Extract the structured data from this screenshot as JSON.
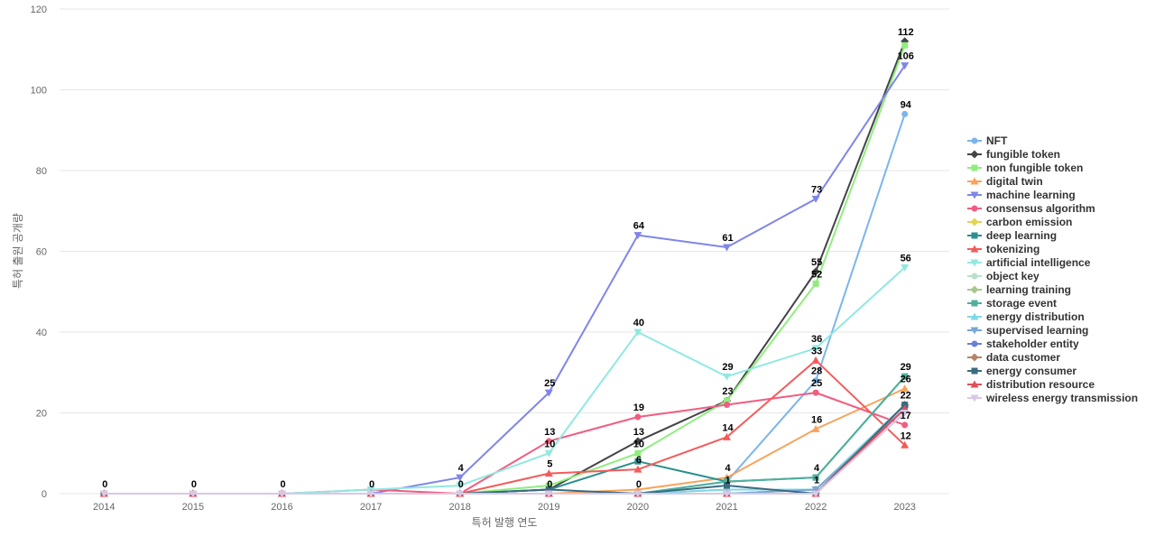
{
  "chart_data": {
    "type": "line",
    "title": "",
    "xlabel": "특허 발행 연도",
    "ylabel": "특허 출원 공개량",
    "categories": [
      "2014",
      "2015",
      "2016",
      "2017",
      "2018",
      "2019",
      "2020",
      "2021",
      "2022",
      "2023"
    ],
    "ylim": [
      0,
      120
    ],
    "yticks": [
      0,
      20,
      40,
      60,
      80,
      100,
      120
    ],
    "grid": true,
    "legend_position": "right",
    "series": [
      {
        "name": "NFT",
        "color": "#7cb5ec",
        "marker": "circle",
        "values": [
          0,
          0,
          0,
          0,
          0,
          0,
          0,
          3,
          28,
          94
        ]
      },
      {
        "name": "fungible token",
        "color": "#434348",
        "marker": "diamond",
        "values": [
          0,
          0,
          0,
          0,
          0,
          1,
          13,
          23,
          55,
          112
        ]
      },
      {
        "name": "non fungible token",
        "color": "#90ed7d",
        "marker": "square",
        "values": [
          0,
          0,
          0,
          0,
          0,
          2,
          10,
          23,
          52,
          111
        ]
      },
      {
        "name": "digital twin",
        "color": "#f7a35c",
        "marker": "triangle",
        "values": [
          0,
          0,
          0,
          0,
          0,
          0,
          1,
          4,
          16,
          26
        ]
      },
      {
        "name": "machine learning",
        "color": "#8085e9",
        "marker": "triangle-down",
        "values": [
          0,
          0,
          0,
          0,
          4,
          25,
          64,
          61,
          73,
          106
        ]
      },
      {
        "name": "consensus algorithm",
        "color": "#f15c80",
        "marker": "circle",
        "values": [
          0,
          0,
          0,
          1,
          0,
          13,
          19,
          22,
          25,
          17
        ]
      },
      {
        "name": "carbon emission",
        "color": "#e4d354",
        "marker": "diamond",
        "values": [
          0,
          0,
          0,
          0,
          0,
          0,
          0,
          0,
          1,
          22
        ]
      },
      {
        "name": "deep learning",
        "color": "#2b908f",
        "marker": "square",
        "values": [
          0,
          0,
          0,
          0,
          0,
          1,
          8,
          3,
          4,
          29
        ]
      },
      {
        "name": "tokenizing",
        "color": "#f45b5b",
        "marker": "triangle",
        "values": [
          0,
          0,
          0,
          0,
          0,
          5,
          6,
          14,
          33,
          12
        ]
      },
      {
        "name": "artificial intelligence",
        "color": "#91e8e1",
        "marker": "triangle-down",
        "values": [
          0,
          0,
          0,
          1,
          2,
          10,
          40,
          29,
          36,
          56
        ]
      },
      {
        "name": "object key",
        "color": "#b9e0c9",
        "marker": "circle",
        "values": [
          0,
          0,
          0,
          0,
          0,
          0,
          0,
          0,
          1,
          22
        ]
      },
      {
        "name": "learning training",
        "color": "#a8c68f",
        "marker": "diamond",
        "values": [
          0,
          0,
          0,
          0,
          0,
          0,
          0,
          1,
          1,
          22
        ]
      },
      {
        "name": "storage event",
        "color": "#4fb09c",
        "marker": "square",
        "values": [
          0,
          0,
          0,
          0,
          0,
          0,
          0,
          3,
          4,
          29
        ]
      },
      {
        "name": "energy distribution",
        "color": "#7fd8e8",
        "marker": "triangle",
        "values": [
          0,
          0,
          0,
          0,
          0,
          0,
          0,
          1,
          1,
          22
        ]
      },
      {
        "name": "supervised learning",
        "color": "#7aa6d6",
        "marker": "triangle-down",
        "values": [
          0,
          0,
          0,
          0,
          0,
          0,
          0,
          0,
          1,
          21
        ]
      },
      {
        "name": "stakeholder entity",
        "color": "#6b7fd7",
        "marker": "circle",
        "values": [
          0,
          0,
          0,
          0,
          0,
          0,
          0,
          0,
          0,
          21
        ]
      },
      {
        "name": "data customer",
        "color": "#b5836a",
        "marker": "diamond",
        "values": [
          0,
          0,
          0,
          0,
          0,
          0,
          0,
          0,
          0,
          22
        ]
      },
      {
        "name": "energy consumer",
        "color": "#3b6b82",
        "marker": "square",
        "values": [
          0,
          0,
          0,
          0,
          0,
          1,
          0,
          2,
          0,
          22
        ]
      },
      {
        "name": "distribution resource",
        "color": "#e0505a",
        "marker": "triangle",
        "values": [
          0,
          0,
          0,
          0,
          0,
          0,
          0,
          0,
          0,
          21
        ]
      },
      {
        "name": "wireless energy transmission",
        "color": "#d8c8e8",
        "marker": "triangle-down",
        "values": [
          0,
          0,
          0,
          0,
          0,
          0,
          0,
          0,
          0,
          20
        ]
      }
    ],
    "data_labels": [
      {
        "category": "2014",
        "text": "0",
        "value": 0
      },
      {
        "category": "2015",
        "text": "0",
        "value": 0
      },
      {
        "category": "2016",
        "text": "0",
        "value": 0
      },
      {
        "category": "2017",
        "text": "0",
        "value": 0
      },
      {
        "category": "2018",
        "text": "4",
        "value": 4
      },
      {
        "category": "2018",
        "text": "0",
        "value": 0
      },
      {
        "category": "2019",
        "text": "25",
        "value": 25
      },
      {
        "category": "2019",
        "text": "13",
        "value": 13
      },
      {
        "category": "2019",
        "text": "10",
        "value": 10
      },
      {
        "category": "2019",
        "text": "5",
        "value": 5
      },
      {
        "category": "2019",
        "text": "0",
        "value": 0
      },
      {
        "category": "2020",
        "text": "64",
        "value": 64
      },
      {
        "category": "2020",
        "text": "40",
        "value": 40
      },
      {
        "category": "2020",
        "text": "19",
        "value": 19
      },
      {
        "category": "2020",
        "text": "13",
        "value": 13
      },
      {
        "category": "2020",
        "text": "10",
        "value": 10
      },
      {
        "category": "2020",
        "text": "6",
        "value": 6
      },
      {
        "category": "2020",
        "text": "0",
        "value": 0
      },
      {
        "category": "2021",
        "text": "61",
        "value": 61
      },
      {
        "category": "2021",
        "text": "29",
        "value": 29
      },
      {
        "category": "2021",
        "text": "23",
        "value": 23
      },
      {
        "category": "2021",
        "text": "14",
        "value": 14
      },
      {
        "category": "2021",
        "text": "4",
        "value": 4
      },
      {
        "category": "2021",
        "text": "1",
        "value": 1
      },
      {
        "category": "2022",
        "text": "73",
        "value": 73
      },
      {
        "category": "2022",
        "text": "55",
        "value": 55
      },
      {
        "category": "2022",
        "text": "52",
        "value": 52
      },
      {
        "category": "2022",
        "text": "36",
        "value": 36
      },
      {
        "category": "2022",
        "text": "33",
        "value": 33
      },
      {
        "category": "2022",
        "text": "28",
        "value": 28
      },
      {
        "category": "2022",
        "text": "25",
        "value": 25
      },
      {
        "category": "2022",
        "text": "16",
        "value": 16
      },
      {
        "category": "2022",
        "text": "4",
        "value": 4
      },
      {
        "category": "2022",
        "text": "1",
        "value": 1
      },
      {
        "category": "2023",
        "text": "112",
        "value": 112
      },
      {
        "category": "2023",
        "text": "106",
        "value": 106
      },
      {
        "category": "2023",
        "text": "94",
        "value": 94
      },
      {
        "category": "2023",
        "text": "56",
        "value": 56
      },
      {
        "category": "2023",
        "text": "29",
        "value": 29
      },
      {
        "category": "2023",
        "text": "26",
        "value": 26
      },
      {
        "category": "2023",
        "text": "22",
        "value": 22
      },
      {
        "category": "2023",
        "text": "17",
        "value": 17
      },
      {
        "category": "2023",
        "text": "12",
        "value": 12
      }
    ]
  }
}
